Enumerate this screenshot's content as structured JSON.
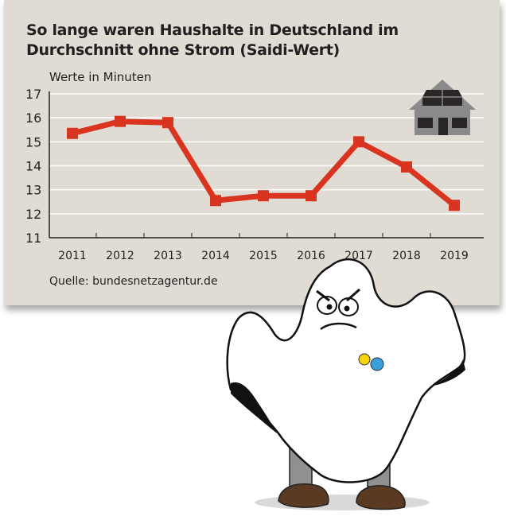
{
  "chart_data": {
    "type": "line",
    "title": "So lange waren Haushalte in Deutschland im Durchschnitt ohne Strom (Saidi-Wert)",
    "ylabel": "Werte in Minuten",
    "xlabel": "",
    "categories": [
      "2011",
      "2012",
      "2013",
      "2014",
      "2015",
      "2016",
      "2017",
      "2018",
      "2019"
    ],
    "values": [
      15.35,
      15.85,
      15.8,
      12.55,
      12.75,
      12.75,
      15.0,
      13.95,
      12.35
    ],
    "ylim": [
      11,
      17
    ],
    "yticks": [
      "11",
      "12",
      "13",
      "14",
      "15",
      "16",
      "17"
    ],
    "grid": true,
    "source": "Quelle: bundesnetzagentur.de",
    "line_color": "#d93420"
  },
  "colors": {
    "background": "#e0dbd3",
    "house": "#8a8a8a"
  }
}
